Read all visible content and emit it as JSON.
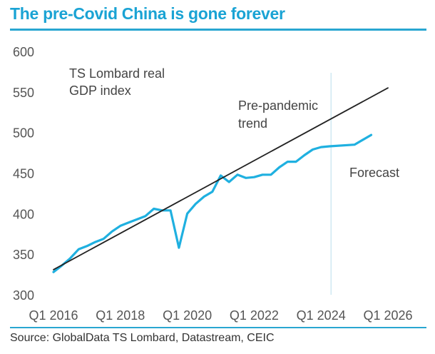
{
  "chart_data": {
    "type": "line",
    "title": "The pre-Covid China is gone forever",
    "source": "Source: GlobalData TS Lombard, Datastream, CEIC",
    "xlabel": "",
    "ylabel": "",
    "ylim": [
      300,
      600
    ],
    "yticks": [
      600,
      550,
      500,
      450,
      400,
      350,
      300
    ],
    "xtick_labels": [
      "Q1 2016",
      "Q1 2018",
      "Q1 2020",
      "Q1 2022",
      "Q1 2024",
      "Q1 2026"
    ],
    "x_unit": "quarters since Q1 2016",
    "xlim": [
      0,
      40
    ],
    "grid": false,
    "forecast_start": 33.2,
    "annotations": {
      "series_label": [
        "TS Lombard real",
        "GDP index"
      ],
      "trend_label": [
        "Pre-pandemic",
        "trend"
      ],
      "forecast_label": "Forecast"
    },
    "series": [
      {
        "name": "TS Lombard real GDP index",
        "color": "#1fb0e0",
        "x": [
          0,
          1,
          2,
          3,
          4,
          5,
          6,
          7,
          8,
          9,
          10,
          11,
          12,
          13,
          14,
          15,
          16,
          17,
          18,
          19,
          20,
          21,
          22,
          23,
          24,
          25,
          26,
          27,
          28,
          29,
          30,
          31,
          32,
          33,
          36,
          38
        ],
        "values": [
          328,
          336,
          345,
          356,
          360,
          365,
          369,
          378,
          385,
          389,
          393,
          397,
          406,
          404,
          404,
          358,
          400,
          412,
          421,
          427,
          447,
          439,
          448,
          444,
          445,
          448,
          448,
          457,
          464,
          464,
          472,
          479,
          482,
          483,
          485,
          497
        ]
      },
      {
        "name": "Pre-pandemic trend",
        "color": "#222222",
        "x": [
          0,
          40
        ],
        "values": [
          331,
          555
        ]
      }
    ]
  }
}
